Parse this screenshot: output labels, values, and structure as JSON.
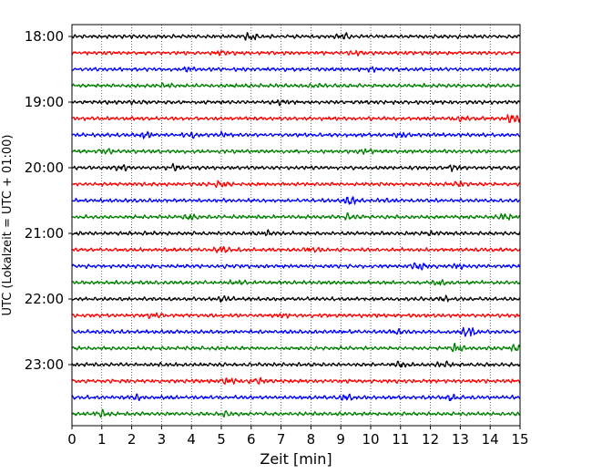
{
  "chart_data": {
    "type": "line",
    "title": "",
    "xlabel": "Zeit  [min]",
    "ylabel": "UTC (Lokalzeit = UTC + 01:00)",
    "xlim": [
      0,
      15
    ],
    "x_ticks": [
      0,
      1,
      2,
      3,
      4,
      5,
      6,
      7,
      8,
      9,
      10,
      11,
      12,
      13,
      14,
      15
    ],
    "x_tick_labels": [
      "0",
      "1",
      "2",
      "3",
      "4",
      "5",
      "6",
      "7",
      "8",
      "9",
      "10",
      "11",
      "12",
      "13",
      "14",
      "15"
    ],
    "y_tick_labels": [
      "18:00",
      "19:00",
      "20:00",
      "21:00",
      "22:00",
      "23:00"
    ],
    "row_interval_minutes": 15,
    "first_row": "18:00",
    "row_count": 24,
    "grid": "vertical dotted",
    "legend": "none",
    "series_colors": [
      "#000000",
      "#ff0000",
      "#0000ff",
      "#008000"
    ],
    "rows": [
      {
        "start": "18:00",
        "color": "#000000",
        "events": [
          [
            6.0,
            1.6
          ],
          [
            9.1,
            1.4
          ]
        ]
      },
      {
        "start": "18:15",
        "color": "#ff0000",
        "events": [
          [
            5.0,
            0.9
          ],
          [
            9.5,
            0.8
          ]
        ]
      },
      {
        "start": "18:30",
        "color": "#0000ff",
        "events": [
          [
            3.9,
            0.8
          ],
          [
            10.0,
            0.7
          ]
        ]
      },
      {
        "start": "18:45",
        "color": "#008000",
        "events": [
          [
            3.2,
            0.8
          ],
          [
            8.3,
            0.8
          ]
        ]
      },
      {
        "start": "19:00",
        "color": "#000000",
        "events": [
          [
            2.2,
            0.8
          ],
          [
            7.0,
            0.8
          ]
        ]
      },
      {
        "start": "19:15",
        "color": "#ff0000",
        "events": [
          [
            13.0,
            1.0
          ],
          [
            14.8,
            2.5
          ]
        ]
      },
      {
        "start": "19:30",
        "color": "#0000ff",
        "events": [
          [
            2.5,
            1.3
          ],
          [
            4.0,
            1.2
          ],
          [
            5.0,
            1.2
          ],
          [
            11.0,
            1.2
          ]
        ]
      },
      {
        "start": "19:45",
        "color": "#008000",
        "events": [
          [
            1.1,
            1.0
          ],
          [
            9.8,
            0.9
          ]
        ]
      },
      {
        "start": "20:00",
        "color": "#000000",
        "events": [
          [
            1.6,
            1.4
          ],
          [
            3.4,
            1.5
          ],
          [
            12.8,
            1.1
          ]
        ]
      },
      {
        "start": "20:15",
        "color": "#ff0000",
        "events": [
          [
            5.0,
            1.2
          ],
          [
            13.0,
            1.0
          ]
        ]
      },
      {
        "start": "20:30",
        "color": "#0000ff",
        "events": [
          [
            9.3,
            2.2
          ],
          [
            10.5,
            0.9
          ]
        ]
      },
      {
        "start": "20:45",
        "color": "#008000",
        "events": [
          [
            3.9,
            1.2
          ],
          [
            9.3,
            1.1
          ],
          [
            14.5,
            1.3
          ]
        ]
      },
      {
        "start": "21:00",
        "color": "#000000",
        "events": [
          [
            6.5,
            0.8
          ],
          [
            12.0,
            0.7
          ]
        ]
      },
      {
        "start": "21:15",
        "color": "#ff0000",
        "events": [
          [
            5.0,
            1.4
          ],
          [
            8.0,
            1.2
          ]
        ]
      },
      {
        "start": "21:30",
        "color": "#0000ff",
        "events": [
          [
            11.6,
            1.6
          ],
          [
            12.9,
            1.1
          ]
        ]
      },
      {
        "start": "21:45",
        "color": "#008000",
        "events": [
          [
            5.5,
            0.8
          ],
          [
            12.3,
            0.9
          ]
        ]
      },
      {
        "start": "22:00",
        "color": "#000000",
        "events": [
          [
            5.1,
            1.0
          ],
          [
            12.4,
            1.0
          ]
        ]
      },
      {
        "start": "22:15",
        "color": "#ff0000",
        "events": [
          [
            2.8,
            1.1
          ],
          [
            7.0,
            1.0
          ]
        ]
      },
      {
        "start": "22:30",
        "color": "#0000ff",
        "events": [
          [
            13.3,
            2.6
          ],
          [
            10.9,
            1.0
          ]
        ]
      },
      {
        "start": "22:45",
        "color": "#008000",
        "events": [
          [
            12.9,
            1.8
          ],
          [
            14.9,
            1.8
          ]
        ]
      },
      {
        "start": "23:00",
        "color": "#000000",
        "events": [
          [
            11.0,
            1.3
          ],
          [
            12.5,
            1.1
          ]
        ]
      },
      {
        "start": "23:15",
        "color": "#ff0000",
        "events": [
          [
            5.2,
            1.5
          ],
          [
            6.2,
            1.4
          ]
        ]
      },
      {
        "start": "23:30",
        "color": "#0000ff",
        "events": [
          [
            2.1,
            1.2
          ],
          [
            9.2,
            1.5
          ],
          [
            12.7,
            1.3
          ]
        ]
      },
      {
        "start": "23:45",
        "color": "#008000",
        "events": [
          [
            1.0,
            1.1
          ],
          [
            5.2,
            1.0
          ]
        ]
      }
    ]
  }
}
